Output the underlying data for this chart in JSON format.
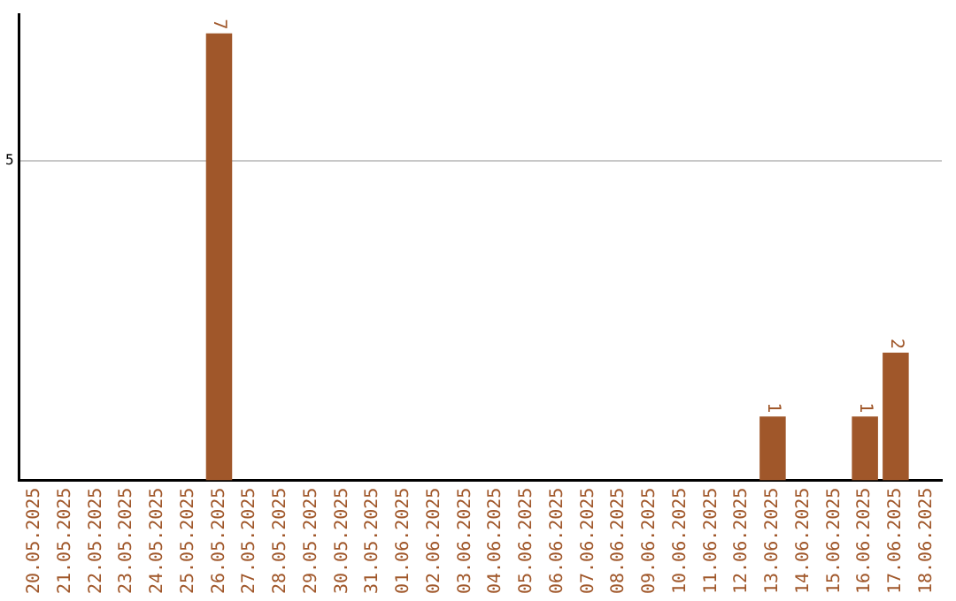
{
  "chart_data": {
    "type": "bar",
    "categories": [
      "20.05.2025",
      "21.05.2025",
      "22.05.2025",
      "23.05.2025",
      "24.05.2025",
      "25.05.2025",
      "26.05.2025",
      "27.05.2025",
      "28.05.2025",
      "29.05.2025",
      "30.05.2025",
      "31.05.2025",
      "01.06.2025",
      "02.06.2025",
      "03.06.2025",
      "04.06.2025",
      "05.06.2025",
      "06.06.2025",
      "07.06.2025",
      "08.06.2025",
      "09.06.2025",
      "10.06.2025",
      "11.06.2025",
      "12.06.2025",
      "13.06.2025",
      "14.06.2025",
      "15.06.2025",
      "16.06.2025",
      "17.06.2025",
      "18.06.2025"
    ],
    "values": [
      0,
      0,
      0,
      0,
      0,
      0,
      7,
      0,
      0,
      0,
      0,
      0,
      0,
      0,
      0,
      0,
      0,
      0,
      0,
      0,
      0,
      0,
      0,
      0,
      1,
      0,
      0,
      1,
      2,
      0
    ],
    "value_labels": [
      null,
      null,
      null,
      null,
      null,
      null,
      "7",
      null,
      null,
      null,
      null,
      null,
      null,
      null,
      null,
      null,
      null,
      null,
      null,
      null,
      null,
      null,
      null,
      null,
      "1",
      null,
      null,
      "1",
      "2",
      null
    ],
    "color": "#a0572a",
    "ylim": [
      0,
      7.3
    ],
    "yticks": [
      5
    ],
    "grid": "y",
    "legend": false
  }
}
